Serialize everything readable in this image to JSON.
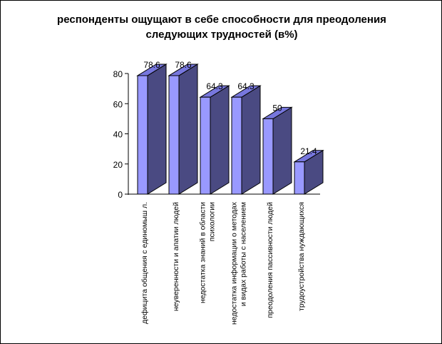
{
  "chart_data": {
    "type": "bar",
    "title_lines": [
      "респонденты ощущают в себе способности для преодоления",
      "следующих трудностей (в%)"
    ],
    "categories": [
      [
        "дефицита общения с единомыш л."
      ],
      [
        "неуверенности и апатии  людей"
      ],
      [
        "недостатка знаний в области",
        "психологии"
      ],
      [
        "недостатка информации о методах",
        "и видах работы с населением"
      ],
      [
        "преодоления пассивности людей"
      ],
      [
        "трудоустройства  нуждающихся"
      ]
    ],
    "values": [
      78.6,
      78.6,
      64.3,
      64.3,
      50,
      21.4
    ],
    "value_labels": [
      "78.6",
      "78.6",
      "64.3",
      "64.3",
      "50",
      "21.4"
    ],
    "ylim": [
      0,
      80
    ],
    "yticks": [
      "0",
      "20",
      "40",
      "60",
      "80"
    ],
    "xlabel": "",
    "ylabel": "",
    "grid": false,
    "legend": "none",
    "bar_front_color": "#9999ff",
    "bar_side_color": "#4a4a82",
    "bar_top_color": "#7777dd"
  }
}
